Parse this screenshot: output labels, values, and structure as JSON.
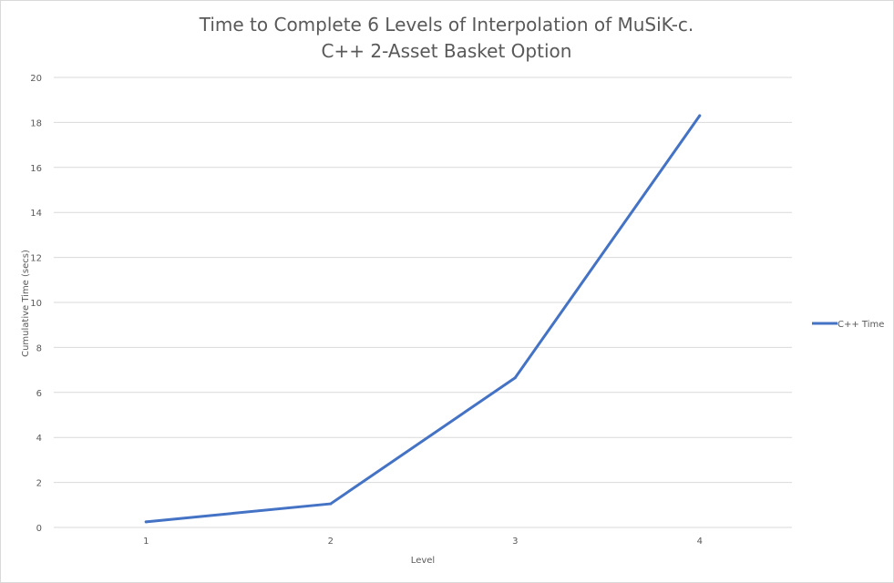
{
  "chart_data": {
    "type": "line",
    "title": [
      "Time to Complete 6 Levels of Interpolation of MuSiK-c.",
      "C++ 2-Asset Basket Option"
    ],
    "xlabel": "Level",
    "ylabel": "Cumulative Time (secs)",
    "categories": [
      "1",
      "2",
      "3",
      "4"
    ],
    "ylim": [
      0,
      20
    ],
    "yticks": [
      0,
      2,
      4,
      6,
      8,
      10,
      12,
      14,
      16,
      18,
      20
    ],
    "grid": true,
    "legend": "right",
    "series": [
      {
        "name": "C++ Time",
        "values": [
          0.25,
          1.05,
          6.65,
          18.3
        ],
        "color": "#4472c4"
      }
    ]
  }
}
